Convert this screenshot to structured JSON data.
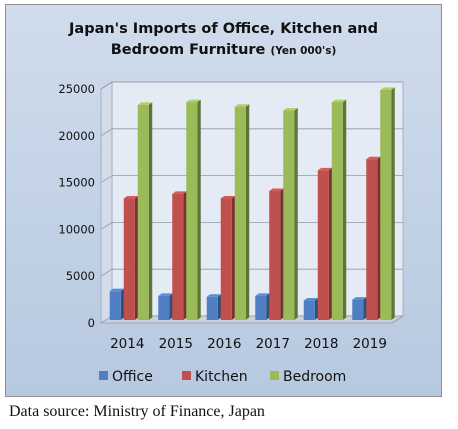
{
  "chart_data": {
    "type": "bar",
    "title_line1": "Japan's Imports of Office, Kitchen and",
    "title_line2": "Bedroom Furniture",
    "title_units": "(Yen 000's)",
    "categories": [
      "2014",
      "2015",
      "2016",
      "2017",
      "2018",
      "2019"
    ],
    "series": [
      {
        "name": "Office",
        "color": "#4f7fc2",
        "values": [
          3400,
          2900,
          2800,
          2900,
          2400,
          2500
        ]
      },
      {
        "name": "Kitchen",
        "color": "#c0504d",
        "values": [
          13300,
          13800,
          13300,
          14100,
          16300,
          17500
        ]
      },
      {
        "name": "Bedroom",
        "color": "#9bbb59",
        "values": [
          23300,
          23600,
          23100,
          22700,
          23600,
          24900
        ]
      }
    ],
    "ylim": [
      0,
      25000
    ],
    "yticks": [
      0,
      5000,
      10000,
      15000,
      20000,
      25000
    ],
    "ytick_labels": [
      "0",
      "5000",
      "10000",
      "15000",
      "20000",
      "25000"
    ],
    "grid": true,
    "legend_position": "bottom"
  },
  "source": "Data source: Ministry of Finance, Japan"
}
